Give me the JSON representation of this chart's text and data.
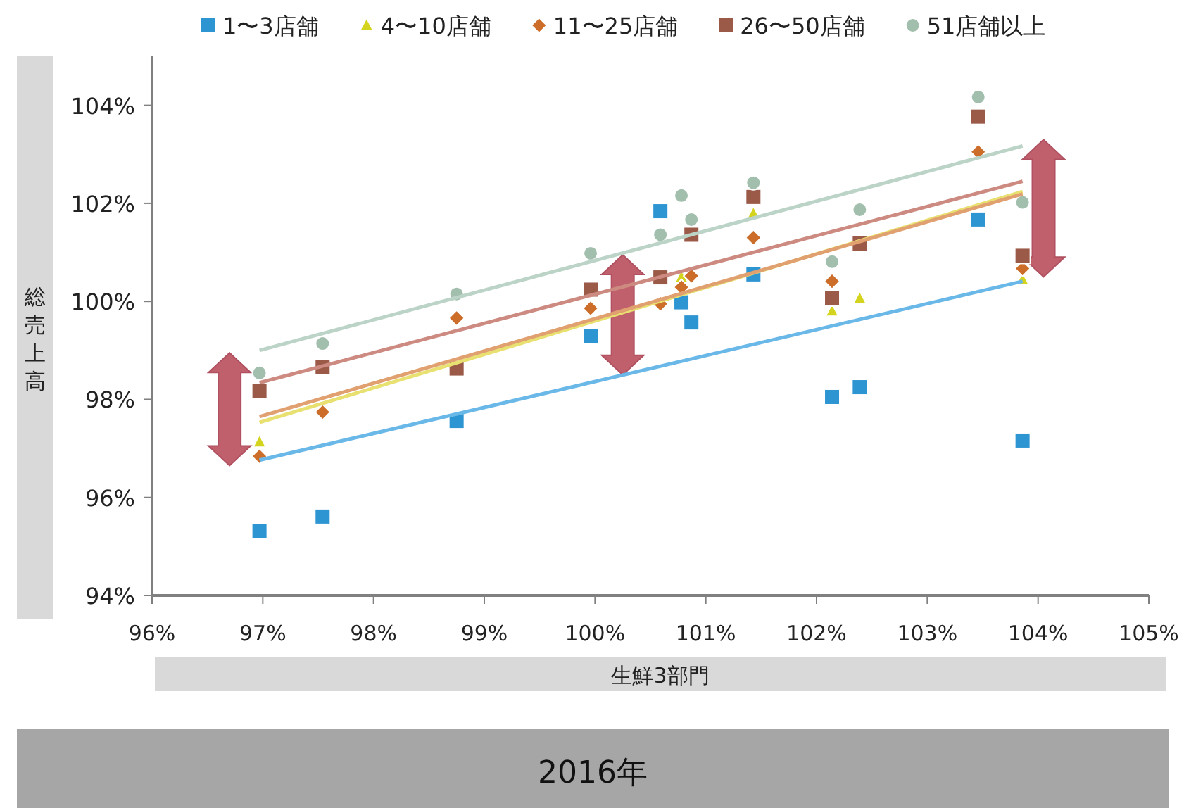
{
  "chart_data": {
    "type": "scatter",
    "title": "2016年",
    "xlabel": "生鮮3部門",
    "ylabel": "総売上高",
    "legend": "top",
    "xlim": [
      96,
      105
    ],
    "ylim": [
      94,
      105
    ],
    "xticks": [
      {
        "value": 96,
        "label": "96%"
      },
      {
        "value": 97,
        "label": "97%"
      },
      {
        "value": 98,
        "label": "98%"
      },
      {
        "value": 99,
        "label": "99%"
      },
      {
        "value": 100,
        "label": "100%"
      },
      {
        "value": 101,
        "label": "101%"
      },
      {
        "value": 102,
        "label": "102%"
      },
      {
        "value": 103,
        "label": "103%"
      },
      {
        "value": 104,
        "label": "104%"
      },
      {
        "value": 105,
        "label": "105%"
      }
    ],
    "yticks": [
      {
        "value": 94,
        "label": "94%"
      },
      {
        "value": 96,
        "label": "96%"
      },
      {
        "value": 98,
        "label": "98%"
      },
      {
        "value": 100,
        "label": "100%"
      },
      {
        "value": 102,
        "label": "102%"
      },
      {
        "value": 104,
        "label": "104%"
      }
    ],
    "x": [
      96.97,
      97.54,
      98.75,
      99.96,
      100.59,
      100.78,
      100.87,
      101.43,
      102.14,
      102.39,
      103.46,
      103.86
    ],
    "series": [
      {
        "name": "1〜3店舗",
        "color": "#2e95d3",
        "marker": "square",
        "values": [
          95.32,
          95.61,
          97.56,
          99.29,
          101.84,
          99.98,
          99.57,
          100.55,
          98.05,
          98.25,
          101.67,
          97.16
        ]
      },
      {
        "name": "4〜10店舗",
        "color": "#d4d41e",
        "marker": "triangle",
        "values": [
          97.13,
          null,
          null,
          null,
          null,
          100.49,
          null,
          101.79,
          99.8,
          100.06,
          null,
          100.44
        ]
      },
      {
        "name": "11〜25店舗",
        "color": "#cc6e2a",
        "marker": "diamond",
        "values": [
          96.84,
          97.74,
          99.66,
          99.86,
          99.95,
          100.29,
          100.52,
          101.3,
          100.41,
          null,
          103.05,
          100.67
        ]
      },
      {
        "name": "26〜50店舗",
        "color": "#9b5a48",
        "marker": "square",
        "values": [
          98.17,
          98.66,
          98.63,
          100.24,
          100.49,
          null,
          101.36,
          102.13,
          100.06,
          101.18,
          103.77,
          100.93
        ]
      },
      {
        "name": "51店舗以上",
        "color": "#a2bfae",
        "marker": "circle",
        "values": [
          98.54,
          99.14,
          100.15,
          100.98,
          101.36,
          102.16,
          101.67,
          102.42,
          100.81,
          101.87,
          104.17,
          102.02
        ]
      },
      {
        "type": "line",
        "color": "#6ab8e8",
        "values": [
          96.76,
          null,
          null,
          null,
          null,
          null,
          null,
          null,
          null,
          null,
          null,
          100.41
        ]
      },
      {
        "type": "line",
        "color": "#e8e070",
        "values": [
          97.53,
          null,
          null,
          null,
          null,
          null,
          null,
          null,
          null,
          null,
          null,
          102.24
        ]
      },
      {
        "type": "line",
        "color": "#e0a070",
        "values": [
          97.65,
          null,
          null,
          null,
          null,
          null,
          null,
          null,
          null,
          null,
          null,
          102.19
        ]
      },
      {
        "type": "line",
        "color": "#cc8a80",
        "values": [
          98.34,
          null,
          null,
          null,
          null,
          null,
          null,
          null,
          null,
          null,
          null,
          102.45
        ]
      },
      {
        "type": "line",
        "color": "#bcd4c8",
        "values": [
          99.0,
          null,
          null,
          null,
          null,
          null,
          null,
          null,
          null,
          null,
          null,
          103.17
        ]
      }
    ]
  }
}
